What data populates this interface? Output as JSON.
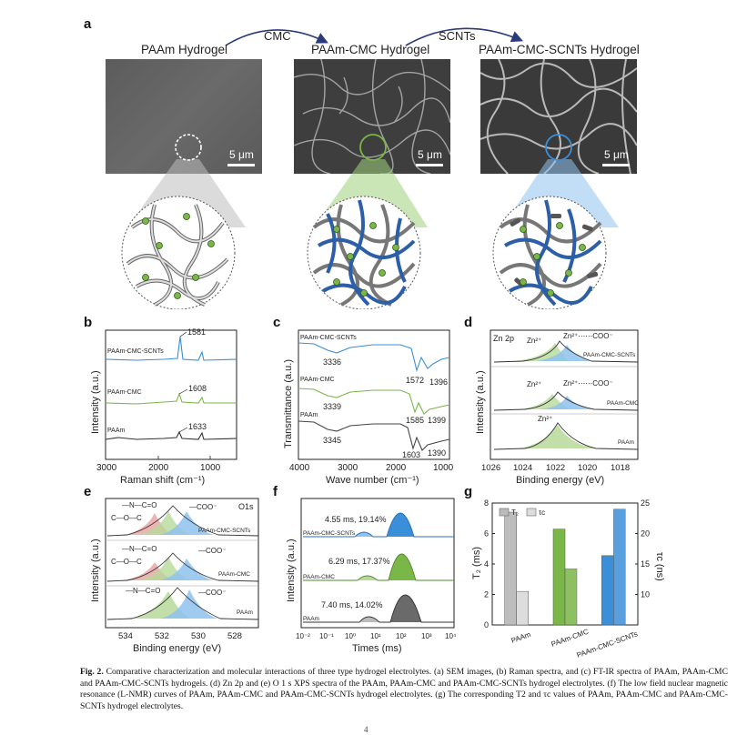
{
  "panel_a": {
    "label": "a",
    "titles": [
      "PAAm Hydrogel",
      "PAAm-CMC Hydrogel",
      "PAAm-CMC-SCNTs Hydrogel"
    ],
    "arrow_labels": [
      "CMC",
      "SCNTs"
    ],
    "scale_label": "5 μm",
    "colors": {
      "paam": "#9e9e9e",
      "cmc": "#7ab648",
      "scnts": "#3a8fd8"
    }
  },
  "chart_data": [
    {
      "panel": "b",
      "type": "line",
      "title": "",
      "xlabel": "Raman shift (cm⁻¹)",
      "ylabel": "Intensity (a.u.)",
      "xlim": [
        3000,
        500
      ],
      "xticks": [
        "3000",
        "2000",
        "1000"
      ],
      "series": [
        {
          "name": "PAAm-CMC-SCNTs",
          "peak": "1581",
          "color": "#3a8fd8"
        },
        {
          "name": "PAAm-CMC",
          "peak": "1608",
          "color": "#7ab648"
        },
        {
          "name": "PAAm",
          "peak": "1633",
          "color": "#333333"
        }
      ]
    },
    {
      "panel": "c",
      "type": "line",
      "title": "",
      "xlabel": "Wave number (cm⁻¹)",
      "ylabel": "Transmittance (a.u.)",
      "xlim": [
        4000,
        1000
      ],
      "xticks": [
        "4000",
        "3000",
        "2000",
        "1000"
      ],
      "series": [
        {
          "name": "PAAm-CMC-SCNTs",
          "peaks": [
            "3336",
            "1572",
            "1396"
          ],
          "color": "#3a8fd8"
        },
        {
          "name": "PAAm-CMC",
          "peaks": [
            "3339",
            "1585",
            "1399"
          ],
          "color": "#7ab648"
        },
        {
          "name": "PAAm",
          "peaks": [
            "3345",
            "1603",
            "1390"
          ],
          "color": "#333333"
        }
      ]
    },
    {
      "panel": "d",
      "type": "line",
      "title": "Zn 2p",
      "xlabel": "Binding energy (eV)",
      "ylabel": "Intensity (a.u.)",
      "xlim": [
        1026,
        1017
      ],
      "xticks": [
        "1026",
        "1024",
        "1022",
        "1020",
        "1018"
      ],
      "series": [
        {
          "name": "PAAm-CMC-SCNTs",
          "components": [
            "Zn²⁺",
            "Zn²⁺⋯⋯COO⁻"
          ]
        },
        {
          "name": "PAAm-CMC",
          "components": [
            "Zn²⁺",
            "Zn²⁺⋯⋯COO⁻"
          ]
        },
        {
          "name": "PAAm",
          "components": [
            "Zn²⁺"
          ]
        }
      ]
    },
    {
      "panel": "e",
      "type": "line",
      "title": "O1s",
      "xlabel": "Binding energy (eV)",
      "ylabel": "Intensity (a.u.)",
      "xlim": [
        535,
        527
      ],
      "xticks": [
        "534",
        "532",
        "530",
        "528"
      ],
      "series": [
        {
          "name": "PAAm-CMC-SCNTs",
          "components": [
            "—N—C=O",
            "C—O—C",
            "—COO⁻"
          ]
        },
        {
          "name": "PAAm-CMC",
          "components": [
            "—N—C=O",
            "C—O—C",
            "—COO⁻"
          ]
        },
        {
          "name": "PAAm",
          "components": [
            "—N—C=O",
            "—COO⁻"
          ]
        }
      ]
    },
    {
      "panel": "f",
      "type": "area",
      "title": "",
      "xlabel": "Times (ms)",
      "ylabel": "Intensity (a.u.)",
      "xscale": "log",
      "xlim": [
        0.01,
        10000
      ],
      "xticks": [
        "10⁻²",
        "10⁻¹",
        "10⁰",
        "10¹",
        "10²",
        "10³",
        "10⁴"
      ],
      "series": [
        {
          "name": "PAAm-CMC-SCNTs",
          "annotation": "4.55 ms, 19.14%",
          "minor_peak_ms": 4.55,
          "minor_fraction_pct": 19.14,
          "major_peak_ms": 200,
          "color": "#3a8fd8"
        },
        {
          "name": "PAAm-CMC",
          "annotation": "6.29 ms, 17.37%",
          "minor_peak_ms": 6.29,
          "minor_fraction_pct": 17.37,
          "major_peak_ms": 180,
          "color": "#7ab648"
        },
        {
          "name": "PAAm",
          "annotation": "7.40 ms, 14.02%",
          "minor_peak_ms": 7.4,
          "minor_fraction_pct": 14.02,
          "major_peak_ms": 200,
          "color": "#555555"
        }
      ]
    },
    {
      "panel": "g",
      "type": "bar",
      "title": "",
      "xlabel": "",
      "ylabel": "T₂ (ms)",
      "y2label": "τc (ns)",
      "categories": [
        "PAAm",
        "PAAm-CMC",
        "PAAm-CMC-SCNTs"
      ],
      "ylim": [
        0,
        8
      ],
      "y2lim": [
        5,
        25
      ],
      "yticks": [
        "0",
        "2",
        "4",
        "6",
        "8"
      ],
      "y2ticks": [
        "10",
        "15",
        "20",
        "25"
      ],
      "legend": [
        "T₂",
        "τc"
      ],
      "legend_position": "top-left",
      "series": [
        {
          "name": "T₂",
          "axis": "left",
          "values": [
            7.4,
            6.29,
            4.55
          ]
        },
        {
          "name": "τc",
          "axis": "right",
          "values": [
            10.5,
            14.2,
            24.0
          ]
        }
      ]
    }
  ],
  "labels": {
    "b": "b",
    "c": "c",
    "d": "d",
    "e": "e",
    "f": "f",
    "g": "g"
  },
  "caption": {
    "fig": "Fig. 2.",
    "text": " Comparative characterization and molecular interactions of three type hydrogel electrolytes. (a) SEM images, (b) Raman spectra, and (c) FT-IR spectra of PAAm, PAAm-CMC and PAAm-CMC-SCNTs hydrogels. (d) Zn 2p and (e) O 1 s XPS spectra of the PAAm, PAAm-CMC and PAAm-CMC-SCNTs hydrogel electrolytes. (f) The low field nuclear magnetic resonance (L-NMR) curves of PAAm, PAAm-CMC and PAAm-CMC-SCNTs hydrogel electrolytes. (g) The corresponding T2 and τc values of PAAm, PAAm-CMC and PAAm-CMC-SCNTs hydrogel electrolytes."
  },
  "page_number": "4"
}
